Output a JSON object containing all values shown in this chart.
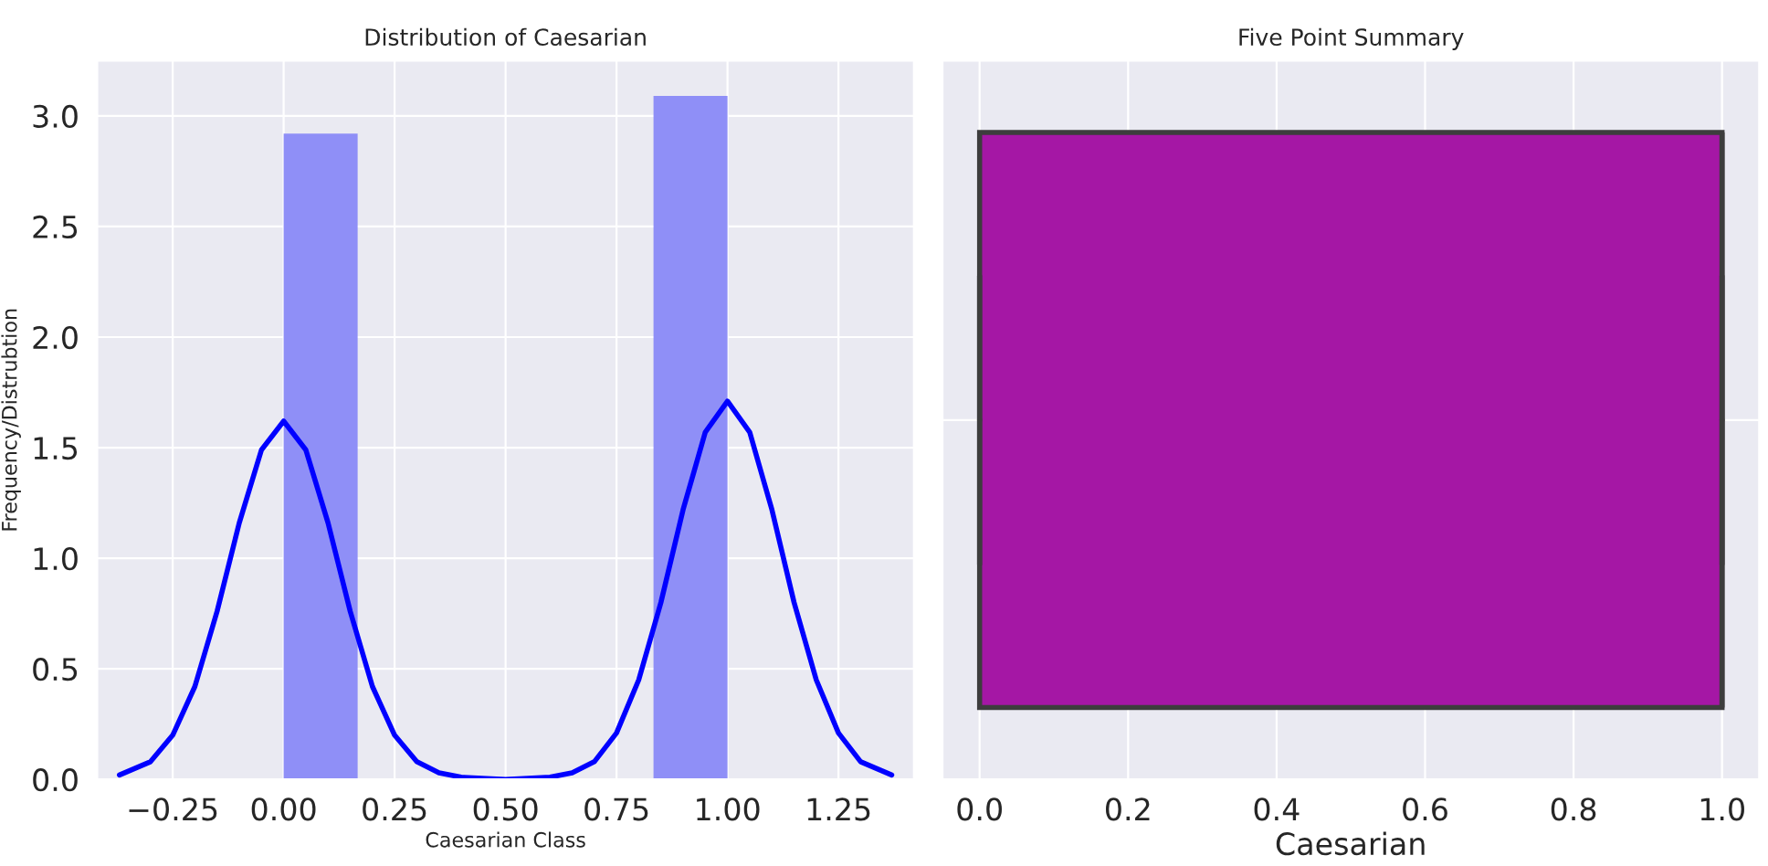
{
  "chart_data": [
    {
      "type": "histogram",
      "title": "Distribution of Caesarian",
      "xlabel": "Caesarian Class",
      "ylabel": "Frequency/Distrubtion",
      "xlim": [
        -0.42,
        1.42
      ],
      "xticks": [
        {
          "value": -0.25,
          "label": "−0.25"
        },
        {
          "value": 0,
          "label": "0.00"
        },
        {
          "value": 0.25,
          "label": "0.25"
        },
        {
          "value": 0.5,
          "label": "0.50"
        },
        {
          "value": 0.75,
          "label": "0.75"
        },
        {
          "value": 1,
          "label": "1.00"
        },
        {
          "value": 1.25,
          "label": "1.25"
        }
      ],
      "ylim": [
        0,
        3.25
      ],
      "yticks": [
        {
          "value": 0,
          "label": "0.0"
        },
        {
          "value": 0.5,
          "label": "0.5"
        },
        {
          "value": 1,
          "label": "1.0"
        },
        {
          "value": 1.5,
          "label": "1.5"
        },
        {
          "value": 2,
          "label": "2.0"
        },
        {
          "value": 2.5,
          "label": "2.5"
        },
        {
          "value": 3,
          "label": "3.0"
        }
      ],
      "grid": true,
      "series": [
        {
          "type": "histogram",
          "color": "#8f8ff7",
          "bins": [
            0,
            0.1667,
            0.3333,
            0.5,
            0.6667,
            0.8333,
            1
          ],
          "values": [
            2.92,
            0,
            0,
            0,
            0,
            3.09
          ]
        },
        {
          "type": "line",
          "color": "#0000ff",
          "x": [
            -0.37,
            -0.3,
            -0.25,
            -0.2,
            -0.15,
            -0.1,
            -0.05,
            0,
            0.05,
            0.1,
            0.15,
            0.2,
            0.25,
            0.3,
            0.35,
            0.4,
            0.5,
            0.6,
            0.65,
            0.7,
            0.75,
            0.8,
            0.85,
            0.9,
            0.95,
            1,
            1.05,
            1.1,
            1.15,
            1.2,
            1.25,
            1.3,
            1.37
          ],
          "values": [
            0.02,
            0.08,
            0.2,
            0.42,
            0.76,
            1.16,
            1.49,
            1.62,
            1.49,
            1.16,
            0.76,
            0.42,
            0.2,
            0.08,
            0.03,
            0.01,
            0,
            0.01,
            0.03,
            0.08,
            0.21,
            0.45,
            0.8,
            1.22,
            1.57,
            1.71,
            1.57,
            1.22,
            0.8,
            0.45,
            0.21,
            0.08,
            0.02
          ]
        }
      ]
    },
    {
      "type": "box",
      "title": "Five Point Summary",
      "xlabel": "Caesarian",
      "orientation": "horizontal",
      "categories": [
        null
      ],
      "tick_labels": "x",
      "grid": true,
      "xlim": [
        -0.05,
        1.05
      ],
      "xticks": [
        {
          "value": 0,
          "label": "0.0"
        },
        {
          "value": 0.2,
          "label": "0.2"
        },
        {
          "value": 0.4,
          "label": "0.4"
        },
        {
          "value": 0.6,
          "label": "0.6"
        },
        {
          "value": 0.8,
          "label": "0.8"
        },
        {
          "value": 1,
          "label": "1.0"
        }
      ],
      "color": "#a517a5",
      "boxes": [
        {
          "low": 0,
          "q1": 0,
          "median": 1,
          "q3": 1,
          "high": 1
        }
      ]
    }
  ]
}
